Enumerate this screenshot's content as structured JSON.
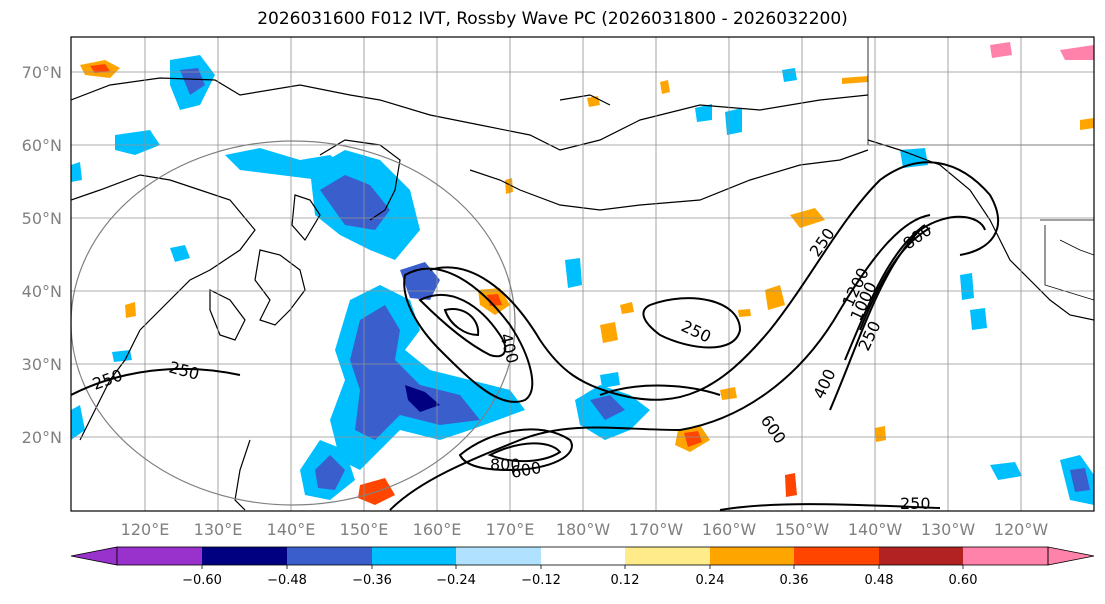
{
  "title": "2026031600 F012 IVT, Rossby Wave PC (2026031800 - 2026032200)",
  "lat_labels": [
    "70°N",
    "60°N",
    "50°N",
    "40°N",
    "30°N",
    "20°N"
  ],
  "lon_labels": [
    "120°E",
    "130°E",
    "140°E",
    "150°E",
    "160°E",
    "170°E",
    "180°W",
    "170°W",
    "160°W",
    "150°W",
    "140°W",
    "130°W",
    "120°W"
  ],
  "colorbar": {
    "ticks": [
      "−0.60",
      "−0.48",
      "−0.36",
      "−0.24",
      "−0.12",
      "0.12",
      "0.24",
      "0.36",
      "0.48",
      "0.60"
    ],
    "colors": [
      "#9932cc",
      "#000080",
      "#3a5fcd",
      "#00bfff",
      "#b0e2ff",
      "#ffffff",
      "#ffeb8a",
      "#ffa500",
      "#ff4500",
      "#b22222",
      "#ff82ab"
    ]
  },
  "contour_labels": [
    "250",
    "250",
    "400",
    "250",
    "600",
    "800",
    "250",
    "400",
    "600",
    "1200",
    "1000",
    "250",
    "800",
    "250"
  ]
}
